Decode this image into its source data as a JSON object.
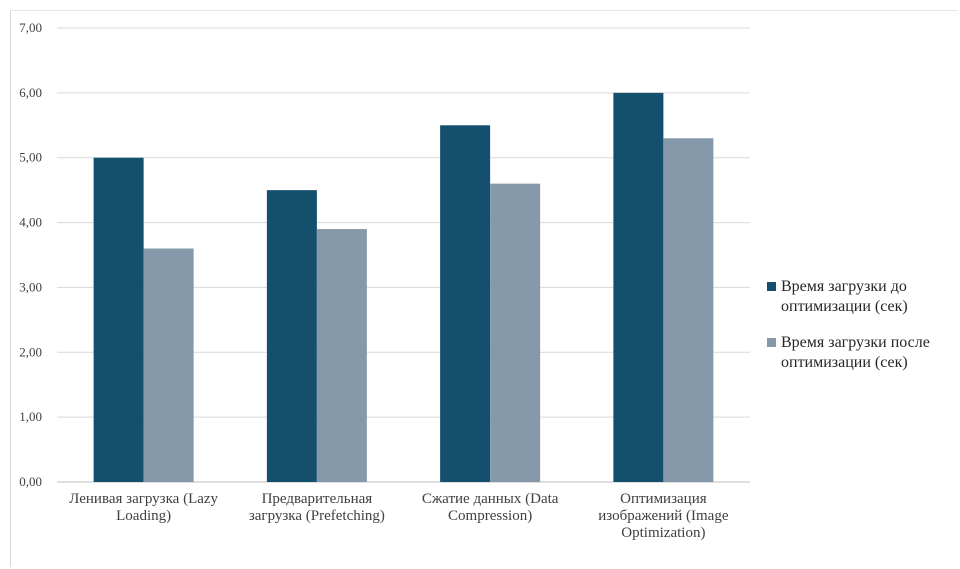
{
  "chart_data": {
    "type": "bar",
    "categories": [
      "Ленивая загрузка (Lazy Loading)",
      "Предварительная загрузка (Prefetching)",
      "Сжатие данных (Data Compression)",
      "Оптимизация изображений (Image Optimization)"
    ],
    "category_lines": [
      [
        "Ленивая загрузка (Lazy",
        "Loading)"
      ],
      [
        "Предварительная",
        "загрузка (Prefetching)"
      ],
      [
        "Сжатие данных (Data",
        "Compression)"
      ],
      [
        "Оптимизация",
        "изображений (Image",
        "Optimization)"
      ]
    ],
    "series": [
      {
        "name": "Время загрузки до оптимизации (сек)",
        "name_lines": [
          "Время загрузки до",
          "оптимизации (сек)"
        ],
        "values": [
          5.0,
          4.5,
          5.5,
          6.0
        ],
        "color": "#14506e"
      },
      {
        "name": "Время загрузки после оптимизации (сек)",
        "name_lines": [
          "Время загрузки после",
          "оптимизации (сек)"
        ],
        "values": [
          3.6,
          3.9,
          4.6,
          5.3
        ],
        "color": "#8599aa"
      }
    ],
    "ylim": [
      0,
      7
    ],
    "yticks": [
      "0,00",
      "1,00",
      "2,00",
      "3,00",
      "4,00",
      "5,00",
      "6,00",
      "7,00"
    ],
    "grid": true,
    "legend_position": "right",
    "title": "",
    "xlabel": "",
    "ylabel": ""
  }
}
